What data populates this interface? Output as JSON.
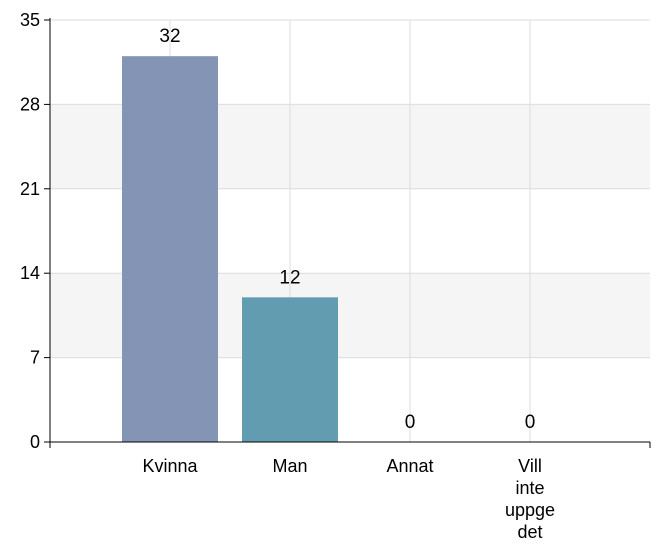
{
  "chart_data": {
    "type": "bar",
    "categories": [
      "Kvinna",
      "Man",
      "Annat",
      "Vill inte uppge det"
    ],
    "category_label_lines": [
      [
        "Kvinna"
      ],
      [
        "Man"
      ],
      [
        "Annat"
      ],
      [
        "Vill",
        "inte",
        "uppge",
        "det"
      ]
    ],
    "values": [
      32,
      12,
      0,
      0
    ],
    "data_labels": [
      "32",
      "12",
      "0",
      "0"
    ],
    "bar_colors": [
      "#8494b4",
      "#619cb1",
      "#8494b4",
      "#619cb1"
    ],
    "y_ticks": [
      0,
      7,
      14,
      21,
      28,
      35
    ],
    "y_tick_labels": [
      "0",
      "7",
      "14",
      "21",
      "28",
      "35"
    ],
    "ylim": [
      0,
      35
    ],
    "grid": true,
    "band_color": "#f5f5f5",
    "grid_color": "#dcdcdc",
    "axis_color": "#000000"
  }
}
